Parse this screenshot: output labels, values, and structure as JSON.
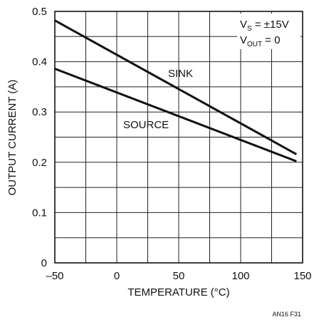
{
  "chart_data": {
    "type": "line",
    "xlabel": "TEMPERATURE (°C)",
    "ylabel": "OUTPUT CURRENT (A)",
    "xlim": [
      -50,
      150
    ],
    "ylim": [
      0,
      0.5
    ],
    "x_ticks": [
      -50,
      0,
      50,
      100,
      150
    ],
    "x_tick_labels": [
      "–50",
      "0",
      "50",
      "100",
      "150"
    ],
    "y_ticks": [
      0,
      0.1,
      0.2,
      0.3,
      0.4,
      0.5
    ],
    "y_tick_labels": [
      "0",
      "0.1",
      "0.2",
      "0.3",
      "0.4",
      "0.5"
    ],
    "x_gridlines": [
      -50,
      -25,
      0,
      25,
      50,
      75,
      100,
      125,
      150
    ],
    "y_gridlines": [
      0,
      0.05,
      0.1,
      0.15,
      0.2,
      0.25,
      0.3,
      0.35,
      0.4,
      0.45,
      0.5
    ],
    "grid": true,
    "series": [
      {
        "name": "SINK",
        "x": [
          -50,
          145
        ],
        "y": [
          0.482,
          0.216
        ]
      },
      {
        "name": "SOURCE",
        "x": [
          -50,
          145
        ],
        "y": [
          0.386,
          0.202
        ]
      }
    ],
    "annotations": {
      "vs_main": "V",
      "vs_sub": "S",
      "vs_rest": " = ±15V",
      "vout_main": "V",
      "vout_sub": "OUT",
      "vout_rest": " = 0"
    },
    "figure_id": "AN16 F31"
  }
}
